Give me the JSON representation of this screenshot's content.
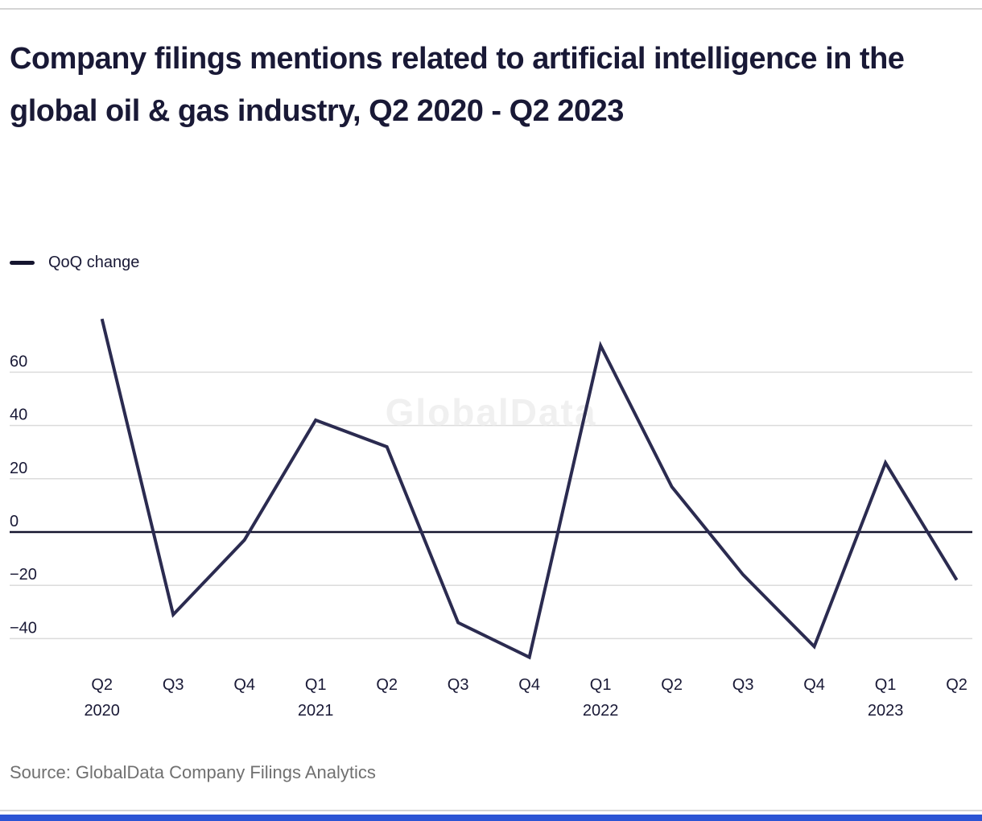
{
  "page": {
    "watermark": "GlobalData",
    "source_note": "Source: GlobalData Company Filings Analytics"
  },
  "colors": {
    "navy": "#191936",
    "line": "#2b2b50",
    "zero": "#15152e",
    "grid": "#dbdbdb",
    "rule": "#d4d4d4",
    "source": "#707070",
    "watermark": "#f0f0f0",
    "bar": "#2b54d4"
  },
  "chart_data": {
    "type": "line",
    "title": "Company filings mentions related to artificial intelligence in the global oil & gas industry, Q2 2020 - Q2 2023",
    "xlabel": "",
    "ylabel": "",
    "grid": true,
    "legend_position": "top-left",
    "categories": [
      "Q2",
      "Q3",
      "Q4",
      "Q1",
      "Q2",
      "Q3",
      "Q4",
      "Q1",
      "Q2",
      "Q3",
      "Q4",
      "Q1",
      "Q2"
    ],
    "year_labels": {
      "0": "2020",
      "3": "2021",
      "7": "2022",
      "11": "2023"
    },
    "series": [
      {
        "name": "QoQ change",
        "values": [
          80,
          -31,
          -3,
          42,
          32,
          -34,
          -47,
          70,
          17,
          -16,
          -43,
          26,
          -18
        ]
      }
    ],
    "y_ticks": [
      {
        "v": 60,
        "label": "60"
      },
      {
        "v": 40,
        "label": "40"
      },
      {
        "v": 20,
        "label": "20"
      },
      {
        "v": 0,
        "label": "0"
      },
      {
        "v": -20,
        "label": "−20"
      },
      {
        "v": -40,
        "label": "−40"
      }
    ],
    "ylim": [
      -52,
      85
    ]
  }
}
